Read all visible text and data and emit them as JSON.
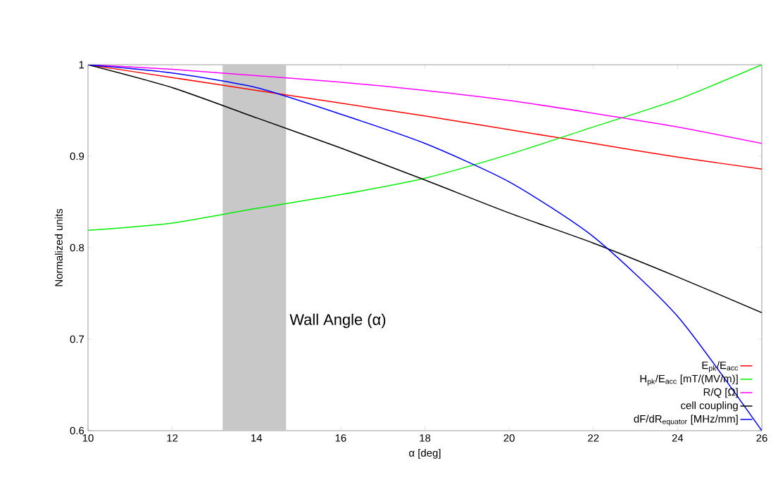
{
  "chart_data": {
    "type": "line",
    "xlabel": "α [deg]",
    "ylabel": "Normalized units",
    "x": [
      10,
      12,
      14,
      16,
      18,
      20,
      22,
      24,
      26
    ],
    "series": [
      {
        "name": "E$_{pk}$/E$_{acc}$",
        "color": "#ff0000",
        "values": [
          1,
          0.986,
          0.972,
          0.958,
          0.944,
          0.929,
          0.914,
          0.899,
          0.886
        ]
      },
      {
        "name": "H$_{pk}$/E$_{acc}$ [mT/(MV/m)]",
        "color": "#00ee00",
        "values": [
          0.819,
          0.827,
          0.843,
          0.858,
          0.876,
          0.902,
          0.932,
          0.962,
          1.0
        ]
      },
      {
        "name": "R/Q [Ω]",
        "color": "#ff00ff",
        "values": [
          1,
          0.995,
          0.988,
          0.981,
          0.972,
          0.961,
          0.947,
          0.932,
          0.914
        ]
      },
      {
        "name": "cell coupling",
        "color": "#000000",
        "values": [
          1,
          0.975,
          0.942,
          0.909,
          0.874,
          0.838,
          0.805,
          0.768,
          0.729
        ]
      },
      {
        "name": "dF/dR$_{equator}$ [MHz/mm]",
        "color": "#0000ff",
        "values": [
          1,
          0.991,
          0.975,
          0.946,
          0.914,
          0.872,
          0.812,
          0.725,
          0.6
        ]
      }
    ],
    "xlim": [
      10,
      26
    ],
    "ylim": [
      0.6,
      1
    ],
    "xticks": [
      10,
      12,
      14,
      16,
      18,
      20,
      22,
      24,
      26
    ],
    "yticks": [
      0.6,
      0.7,
      0.8,
      0.9,
      1
    ],
    "bands": [
      {
        "axis": "x",
        "from": 13.2,
        "to": 14.7,
        "label": "Wall Angle (α)",
        "color": "#c8c8c8"
      }
    ],
    "legend": "bottom right",
    "grid": false,
    "marker": "none",
    "line_style": "solid"
  }
}
